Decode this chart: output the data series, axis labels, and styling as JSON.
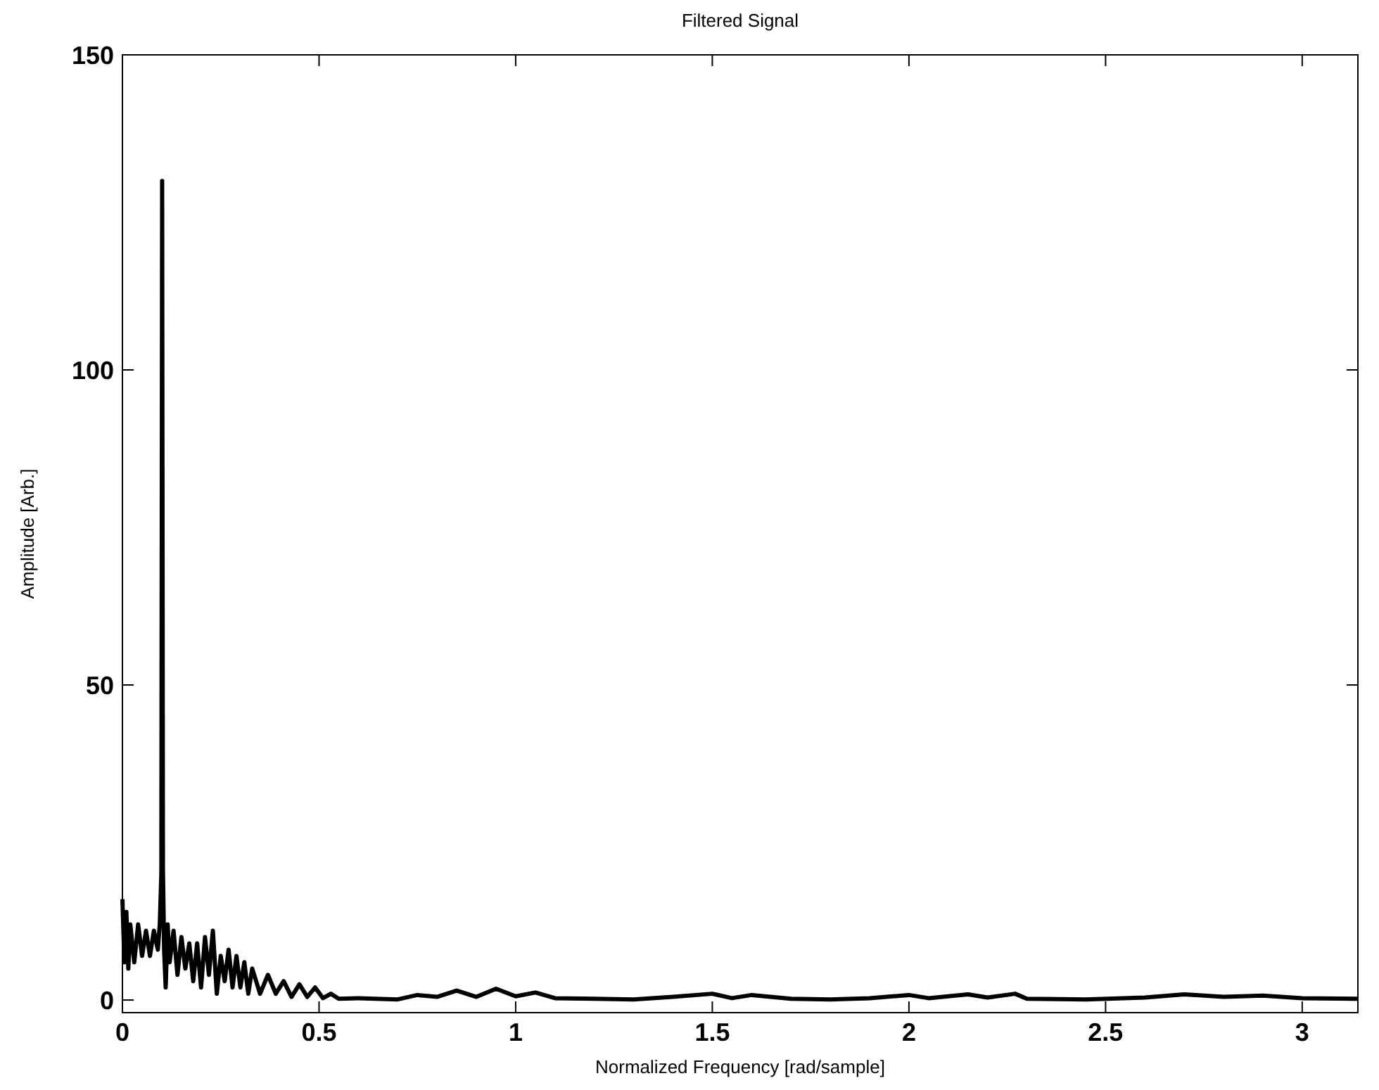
{
  "chart_data": {
    "type": "line",
    "title": "Filtered Signal",
    "xlabel": "Normalized Frequency [rad/sample]",
    "ylabel": "Amplitude [Arb.]",
    "xlim": [
      0,
      3.1416
    ],
    "ylim": [
      -2,
      150
    ],
    "xticks": [
      0,
      0.5,
      1,
      1.5,
      2,
      2.5,
      3
    ],
    "yticks": [
      0,
      50,
      100,
      150
    ],
    "grid": false,
    "marker": "none",
    "line_style": "solid",
    "series": [
      {
        "color": "#000000",
        "x": [
          0,
          0.005,
          0.01,
          0.015,
          0.02,
          0.03,
          0.04,
          0.05,
          0.06,
          0.07,
          0.08,
          0.09,
          0.095,
          0.099,
          0.101,
          0.103,
          0.106,
          0.11,
          0.115,
          0.12,
          0.13,
          0.14,
          0.15,
          0.16,
          0.17,
          0.18,
          0.19,
          0.2,
          0.21,
          0.22,
          0.23,
          0.24,
          0.25,
          0.26,
          0.27,
          0.28,
          0.29,
          0.3,
          0.31,
          0.32,
          0.33,
          0.35,
          0.37,
          0.39,
          0.41,
          0.43,
          0.45,
          0.47,
          0.49,
          0.51,
          0.53,
          0.55,
          0.6,
          0.7,
          0.75,
          0.8,
          0.85,
          0.9,
          0.95,
          1.0,
          1.05,
          1.1,
          1.2,
          1.3,
          1.4,
          1.5,
          1.55,
          1.6,
          1.7,
          1.8,
          1.9,
          2.0,
          2.05,
          2.15,
          2.2,
          2.27,
          2.3,
          2.45,
          2.6,
          2.7,
          2.8,
          2.9,
          3.0,
          3.14
        ],
        "values": [
          16,
          6,
          14,
          5,
          12,
          6,
          12,
          7,
          11,
          7,
          11,
          8,
          12,
          20,
          130,
          21,
          8,
          2,
          12,
          6,
          11,
          4,
          10,
          5,
          9,
          3,
          9,
          2,
          10,
          4,
          11,
          1,
          7,
          3,
          8,
          2,
          7,
          2,
          6,
          1,
          5,
          1,
          4,
          1,
          3,
          0.5,
          2.5,
          0.5,
          2,
          0.3,
          1,
          0.2,
          0.3,
          0.1,
          0.8,
          0.5,
          1.5,
          0.5,
          1.8,
          0.6,
          1.2,
          0.3,
          0.2,
          0.1,
          0.5,
          1,
          0.3,
          0.8,
          0.2,
          0.1,
          0.3,
          0.8,
          0.3,
          0.9,
          0.4,
          1,
          0.2,
          0.1,
          0.4,
          0.9,
          0.5,
          0.7,
          0.3,
          0.2
        ]
      }
    ]
  }
}
